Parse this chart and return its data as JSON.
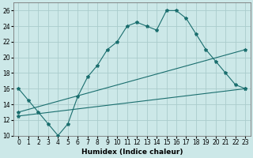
{
  "xlabel": "Humidex (Indice chaleur)",
  "bg_color": "#cce8e8",
  "grid_color": "#aacccc",
  "line_color": "#1a6e6e",
  "xlim": [
    -0.5,
    23.5
  ],
  "ylim": [
    10,
    27
  ],
  "xticks": [
    0,
    1,
    2,
    3,
    4,
    5,
    6,
    7,
    8,
    9,
    10,
    11,
    12,
    13,
    14,
    15,
    16,
    17,
    18,
    19,
    20,
    21,
    22,
    23
  ],
  "yticks": [
    10,
    12,
    14,
    16,
    18,
    20,
    22,
    24,
    26
  ],
  "curve1_x": [
    0,
    1,
    2,
    3,
    4,
    5,
    6,
    7,
    8,
    9,
    10,
    11,
    12,
    13,
    14,
    15,
    16,
    17,
    18,
    19,
    20,
    21,
    22,
    23
  ],
  "curve1_y": [
    16,
    14.5,
    13,
    11.5,
    10,
    11.5,
    15,
    17.5,
    19,
    21,
    22,
    24,
    24.5,
    24,
    23.5,
    26,
    26,
    25,
    23,
    21,
    19.5,
    18,
    16.5,
    16
  ],
  "curve2_x": [
    0,
    23
  ],
  "curve2_y": [
    13,
    21
  ],
  "curve3_x": [
    0,
    23
  ],
  "curve3_y": [
    12.5,
    16
  ],
  "marker": "*",
  "marker_size": 3,
  "tick_fontsize": 5.5,
  "xlabel_fontsize": 6.5,
  "xlabel_fontweight": "bold",
  "linewidth": 0.8
}
